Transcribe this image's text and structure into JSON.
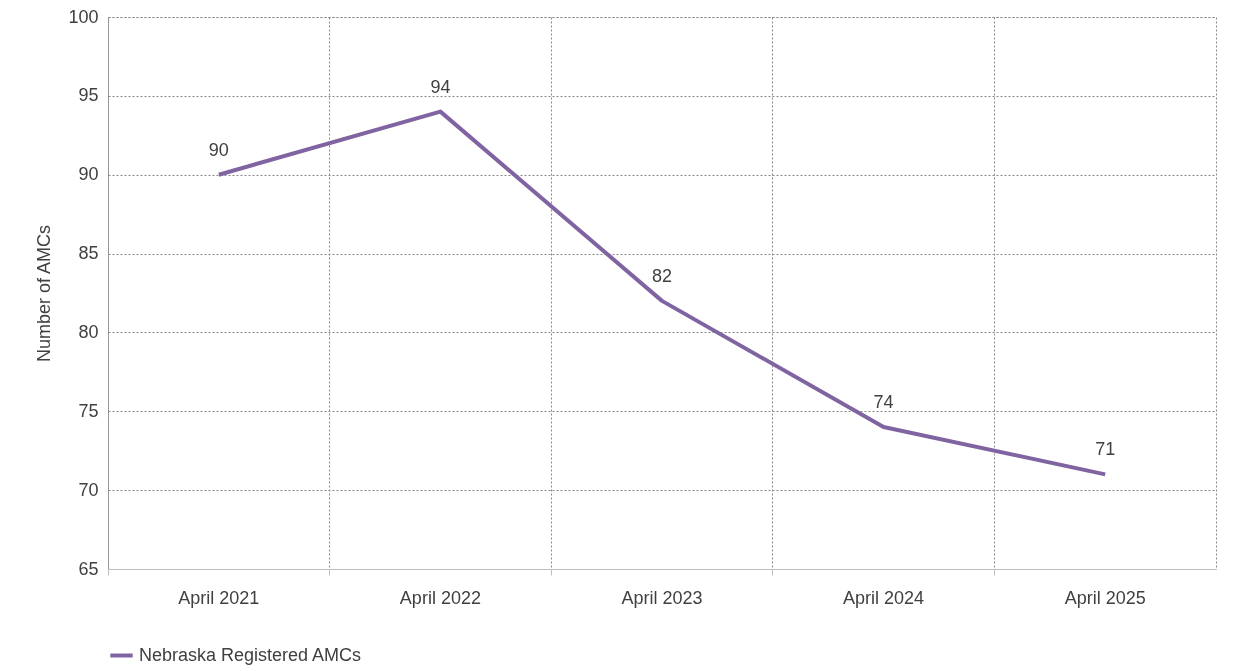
{
  "chart_data": {
    "type": "line",
    "categories": [
      "April 2021",
      "April 2022",
      "April 2023",
      "April 2024",
      "April 2025"
    ],
    "series": [
      {
        "name": "Nebraska Registered AMCs",
        "color": "#8064a2",
        "values": [
          90,
          94,
          82,
          74,
          71
        ]
      }
    ],
    "ylabel": "Number of AMCs",
    "ylim": [
      65,
      100
    ],
    "yticks": [
      65,
      70,
      75,
      80,
      85,
      90,
      95,
      100
    ],
    "grid": true,
    "legend": "bottom",
    "data_labels": true,
    "marker": "none",
    "line_style": "solid"
  }
}
